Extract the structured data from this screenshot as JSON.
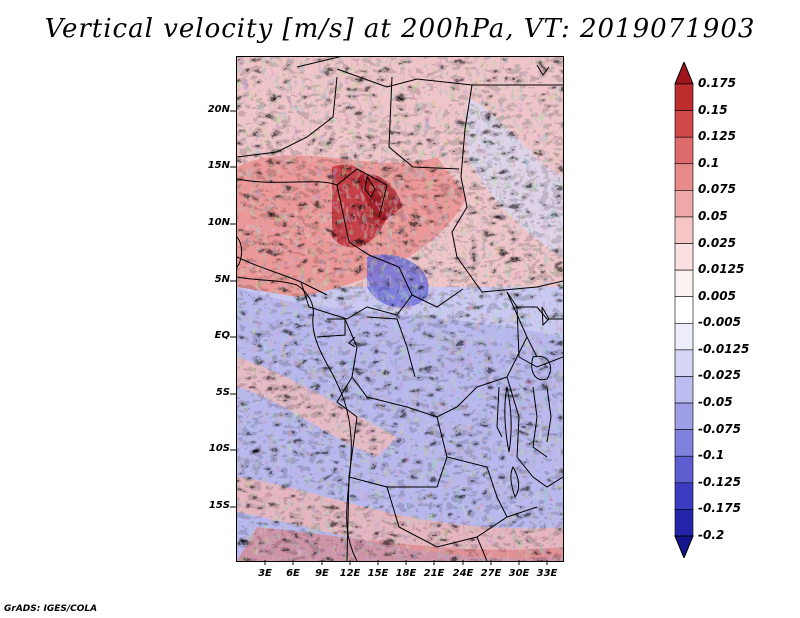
{
  "title": "Vertical velocity [m/s] at 200hPa, VT: 2019071903",
  "credit": "GrADS: IGES/COLA",
  "lat_labels": [
    "20N",
    "15N",
    "10N",
    "5N",
    "EQ",
    "5S",
    "10S",
    "15S"
  ],
  "lon_labels": [
    "3E",
    "6E",
    "9E",
    "12E",
    "15E",
    "18E",
    "21E",
    "24E",
    "27E",
    "30E",
    "33E"
  ],
  "colorbar": {
    "labels": [
      "0.175",
      "0.15",
      "0.125",
      "0.1",
      "0.075",
      "0.05",
      "0.025",
      "0.0125",
      "0.005",
      "-0.005",
      "-0.0125",
      "-0.025",
      "-0.05",
      "-0.075",
      "-0.1",
      "-0.125",
      "-0.175",
      "-0.2"
    ],
    "colors": [
      "#a0141e",
      "#bd2d2d",
      "#d04848",
      "#dd6b6b",
      "#e68a8a",
      "#eea8a8",
      "#f5c6c6",
      "#fae0e0",
      "#fdf2f2",
      "#ffffff",
      "#ececfb",
      "#d6d6f6",
      "#bcbcf0",
      "#9f9fe8",
      "#8080de",
      "#5e5ed0",
      "#3c3cc0",
      "#2424a8",
      "#14148c"
    ]
  },
  "map_extent": {
    "lon_min": 0,
    "lon_max": 35,
    "lat_min": -20,
    "lat_max": 25
  }
}
